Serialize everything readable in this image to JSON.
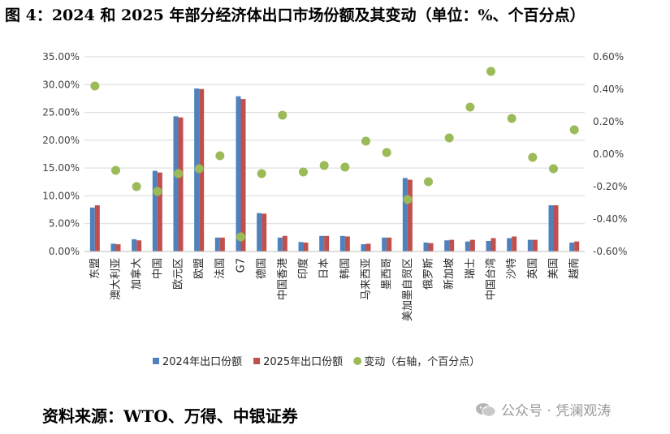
{
  "title": "图 4：2024 和 2025 年部分经济体出口市场份额及其变动（单位：%、个百分点）",
  "source": "资料来源：WTO、万得、中银证券",
  "watermark": {
    "text": "公众号 · 凭澜观涛",
    "icon": "wechat-icon"
  },
  "colors": {
    "series2024": "#4f81bd",
    "series2025": "#c0504d",
    "change": "#9bbb59",
    "grid": "#d9d9d9",
    "axis": "#595959"
  },
  "chart_data": {
    "type": "bar",
    "categories": [
      "东盟",
      "澳大利亚",
      "加拿大",
      "中国",
      "欧元区",
      "欧盟",
      "法国",
      "G7",
      "德国",
      "中国香港",
      "印度",
      "日本",
      "韩国",
      "马来西亚",
      "墨西哥",
      "美加墨自贸区",
      "俄罗斯",
      "新加坡",
      "瑞士",
      "中国台湾",
      "沙特",
      "英国",
      "美国",
      "越南"
    ],
    "series": [
      {
        "name": "2024年出口份额",
        "axis": "left",
        "values": [
          7.9,
          1.4,
          2.2,
          14.5,
          24.3,
          29.3,
          2.5,
          27.9,
          6.9,
          2.5,
          1.7,
          2.8,
          2.8,
          1.3,
          2.5,
          13.2,
          1.6,
          2.0,
          1.8,
          1.9,
          2.4,
          2.1,
          8.3,
          1.6
        ]
      },
      {
        "name": "2025年出口份额",
        "axis": "left",
        "values": [
          8.3,
          1.3,
          2.0,
          14.2,
          24.1,
          29.2,
          2.5,
          27.4,
          6.8,
          2.8,
          1.6,
          2.8,
          2.7,
          1.4,
          2.5,
          12.9,
          1.5,
          2.1,
          2.1,
          2.4,
          2.7,
          2.1,
          8.3,
          1.8
        ]
      },
      {
        "name": "变动（右轴，个百分点）",
        "axis": "right",
        "type": "scatter",
        "values": [
          0.42,
          -0.1,
          -0.2,
          -0.23,
          -0.12,
          -0.09,
          -0.01,
          -0.51,
          -0.12,
          0.24,
          -0.11,
          -0.07,
          -0.08,
          0.08,
          0.01,
          -0.28,
          -0.17,
          0.1,
          0.29,
          0.51,
          0.22,
          -0.02,
          -0.09,
          0.15
        ]
      }
    ],
    "yleft": {
      "min": 0,
      "max": 35,
      "step": 5,
      "ticks": [
        "0.00%",
        "5.00%",
        "10.00%",
        "15.00%",
        "20.00%",
        "25.00%",
        "30.00%",
        "35.00%"
      ]
    },
    "yright": {
      "min": -0.6,
      "max": 0.6,
      "step": 0.2,
      "ticks": [
        "-0.60%",
        "-0.40%",
        "-0.20%",
        "0.00%",
        "0.20%",
        "0.40%",
        "0.60%"
      ]
    },
    "grid": true,
    "legend_position": "bottom"
  }
}
